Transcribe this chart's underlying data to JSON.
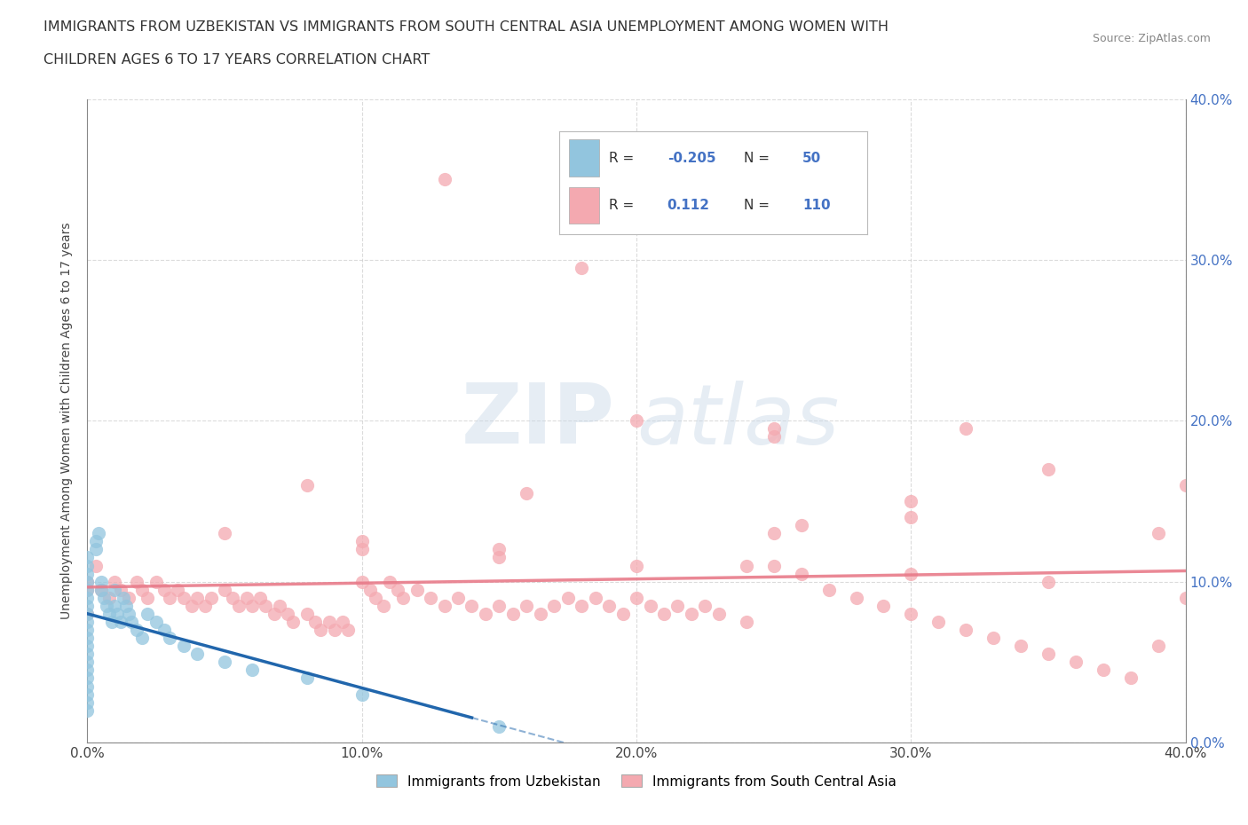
{
  "title_line1": "IMMIGRANTS FROM UZBEKISTAN VS IMMIGRANTS FROM SOUTH CENTRAL ASIA UNEMPLOYMENT AMONG WOMEN WITH",
  "title_line2": "CHILDREN AGES 6 TO 17 YEARS CORRELATION CHART",
  "source": "Source: ZipAtlas.com",
  "ylabel": "Unemployment Among Women with Children Ages 6 to 17 years",
  "xlim": [
    0.0,
    0.4
  ],
  "ylim": [
    0.0,
    0.4
  ],
  "xtick_vals": [
    0.0,
    0.1,
    0.2,
    0.3,
    0.4
  ],
  "ytick_vals": [
    0.0,
    0.1,
    0.2,
    0.3,
    0.4
  ],
  "legend_R1": "-0.205",
  "legend_N1": "50",
  "legend_R2": "0.112",
  "legend_N2": "110",
  "color_uzbekistan": "#92c5de",
  "color_sca": "#f4a9b0",
  "color_line_uzbekistan": "#2166ac",
  "color_line_sca": "#e87b8a",
  "watermark_zip": "ZIP",
  "watermark_atlas": "atlas",
  "background_color": "#ffffff",
  "grid_color": "#cccccc",
  "uz_x": [
    0.0,
    0.0,
    0.0,
    0.0,
    0.0,
    0.0,
    0.0,
    0.0,
    0.0,
    0.0,
    0.0,
    0.0,
    0.0,
    0.0,
    0.0,
    0.0,
    0.0,
    0.0,
    0.0,
    0.0,
    0.003,
    0.003,
    0.004,
    0.005,
    0.005,
    0.006,
    0.007,
    0.008,
    0.009,
    0.01,
    0.01,
    0.011,
    0.012,
    0.013,
    0.014,
    0.015,
    0.016,
    0.018,
    0.02,
    0.022,
    0.025,
    0.028,
    0.03,
    0.035,
    0.04,
    0.05,
    0.06,
    0.08,
    0.1,
    0.15
  ],
  "uz_y": [
    0.02,
    0.025,
    0.03,
    0.035,
    0.04,
    0.045,
    0.05,
    0.055,
    0.06,
    0.065,
    0.07,
    0.075,
    0.08,
    0.085,
    0.09,
    0.095,
    0.1,
    0.105,
    0.11,
    0.115,
    0.12,
    0.125,
    0.13,
    0.095,
    0.1,
    0.09,
    0.085,
    0.08,
    0.075,
    0.095,
    0.085,
    0.08,
    0.075,
    0.09,
    0.085,
    0.08,
    0.075,
    0.07,
    0.065,
    0.08,
    0.075,
    0.07,
    0.065,
    0.06,
    0.055,
    0.05,
    0.045,
    0.04,
    0.03,
    0.01
  ],
  "sca_x": [
    0.0,
    0.0,
    0.0,
    0.003,
    0.005,
    0.008,
    0.01,
    0.012,
    0.015,
    0.018,
    0.02,
    0.022,
    0.025,
    0.028,
    0.03,
    0.033,
    0.035,
    0.038,
    0.04,
    0.043,
    0.045,
    0.05,
    0.053,
    0.055,
    0.058,
    0.06,
    0.063,
    0.065,
    0.068,
    0.07,
    0.073,
    0.075,
    0.08,
    0.083,
    0.085,
    0.088,
    0.09,
    0.093,
    0.095,
    0.1,
    0.103,
    0.105,
    0.108,
    0.11,
    0.113,
    0.115,
    0.12,
    0.125,
    0.13,
    0.135,
    0.14,
    0.145,
    0.15,
    0.155,
    0.16,
    0.165,
    0.17,
    0.175,
    0.18,
    0.185,
    0.19,
    0.195,
    0.2,
    0.205,
    0.21,
    0.215,
    0.22,
    0.225,
    0.23,
    0.24,
    0.25,
    0.26,
    0.27,
    0.28,
    0.29,
    0.3,
    0.31,
    0.32,
    0.33,
    0.34,
    0.35,
    0.36,
    0.37,
    0.38,
    0.39,
    0.4,
    0.25,
    0.3,
    0.35,
    0.4,
    0.1,
    0.15,
    0.2,
    0.25,
    0.3,
    0.35,
    0.08,
    0.16,
    0.24,
    0.32,
    0.05,
    0.1,
    0.15,
    0.2,
    0.25,
    0.3,
    0.13,
    0.26,
    0.39,
    0.18
  ],
  "sca_y": [
    0.08,
    0.095,
    0.1,
    0.11,
    0.095,
    0.09,
    0.1,
    0.095,
    0.09,
    0.1,
    0.095,
    0.09,
    0.1,
    0.095,
    0.09,
    0.095,
    0.09,
    0.085,
    0.09,
    0.085,
    0.09,
    0.095,
    0.09,
    0.085,
    0.09,
    0.085,
    0.09,
    0.085,
    0.08,
    0.085,
    0.08,
    0.075,
    0.08,
    0.075,
    0.07,
    0.075,
    0.07,
    0.075,
    0.07,
    0.1,
    0.095,
    0.09,
    0.085,
    0.1,
    0.095,
    0.09,
    0.095,
    0.09,
    0.085,
    0.09,
    0.085,
    0.08,
    0.085,
    0.08,
    0.085,
    0.08,
    0.085,
    0.09,
    0.085,
    0.09,
    0.085,
    0.08,
    0.09,
    0.085,
    0.08,
    0.085,
    0.08,
    0.085,
    0.08,
    0.075,
    0.11,
    0.105,
    0.095,
    0.09,
    0.085,
    0.08,
    0.075,
    0.07,
    0.065,
    0.06,
    0.055,
    0.05,
    0.045,
    0.04,
    0.06,
    0.09,
    0.19,
    0.15,
    0.17,
    0.16,
    0.12,
    0.115,
    0.11,
    0.13,
    0.105,
    0.1,
    0.16,
    0.155,
    0.11,
    0.195,
    0.13,
    0.125,
    0.12,
    0.2,
    0.195,
    0.14,
    0.35,
    0.135,
    0.13,
    0.295
  ]
}
